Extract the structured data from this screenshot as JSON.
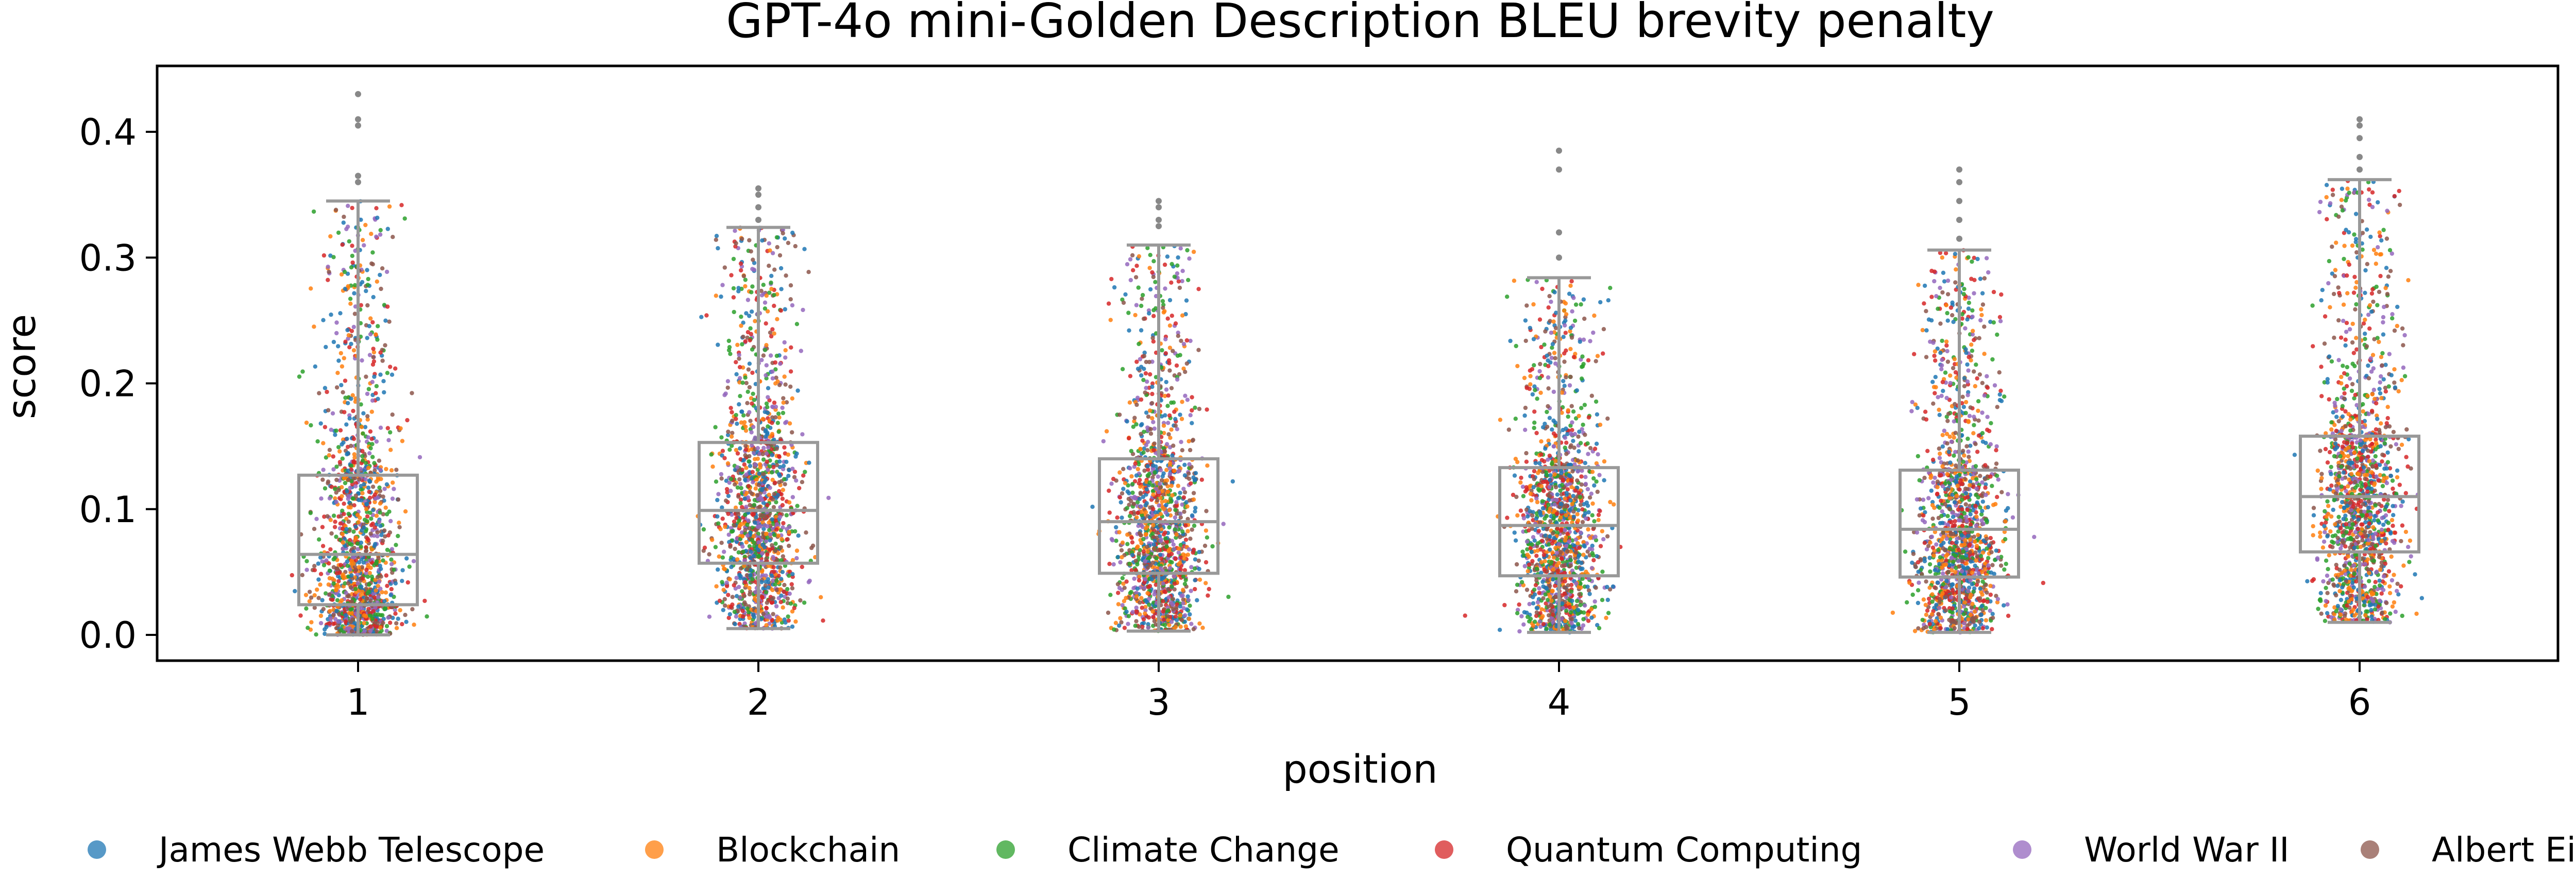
{
  "chart_data": {
    "type": "box-strip",
    "title": "GPT-4o mini-Golden Description BLEU brevity penalty",
    "xlabel": "position",
    "ylabel": "score",
    "categories": [
      "1",
      "2",
      "3",
      "4",
      "5",
      "6"
    ],
    "ylim": [
      -0.02,
      0.45
    ],
    "yticks": [
      0.0,
      0.1,
      0.2,
      0.3,
      0.4
    ],
    "ytick_labels": [
      "0.0",
      "0.1",
      "0.2",
      "0.3",
      "0.4"
    ],
    "grid": false,
    "legend_position": "bottom",
    "boxes": [
      {
        "position": "1",
        "whisker_low": 0.0,
        "q1": 0.024,
        "median": 0.064,
        "q3": 0.127,
        "whisker_high": 0.345,
        "outliers": [
          0.36,
          0.365,
          0.405,
          0.41,
          0.43
        ]
      },
      {
        "position": "2",
        "whisker_low": 0.005,
        "q1": 0.057,
        "median": 0.099,
        "q3": 0.153,
        "whisker_high": 0.324,
        "outliers": [
          0.33,
          0.34,
          0.35,
          0.355
        ]
      },
      {
        "position": "3",
        "whisker_low": 0.003,
        "q1": 0.049,
        "median": 0.09,
        "q3": 0.14,
        "whisker_high": 0.31,
        "outliers": [
          0.325,
          0.33,
          0.34,
          0.345
        ]
      },
      {
        "position": "4",
        "whisker_low": 0.002,
        "q1": 0.047,
        "median": 0.087,
        "q3": 0.133,
        "whisker_high": 0.284,
        "outliers": [
          0.3,
          0.32,
          0.37,
          0.385
        ]
      },
      {
        "position": "5",
        "whisker_low": 0.002,
        "q1": 0.046,
        "median": 0.084,
        "q3": 0.131,
        "whisker_high": 0.306,
        "outliers": [
          0.315,
          0.33,
          0.345,
          0.36,
          0.37
        ]
      },
      {
        "position": "6",
        "whisker_low": 0.01,
        "q1": 0.066,
        "median": 0.11,
        "q3": 0.158,
        "whisker_high": 0.362,
        "outliers": [
          0.37,
          0.38,
          0.395,
          0.405,
          0.41
        ]
      }
    ],
    "series": [
      {
        "name": "James Webb Telescope",
        "color": "#1f77b4"
      },
      {
        "name": "Blockchain",
        "color": "#ff7f0e"
      },
      {
        "name": "Climate Change",
        "color": "#2ca02c"
      },
      {
        "name": "Quantum Computing",
        "color": "#d62728"
      },
      {
        "name": "World War II",
        "color": "#9467bd"
      },
      {
        "name": "Albert Einstein",
        "color": "#8c564b"
      }
    ],
    "box_color": "#999999"
  }
}
